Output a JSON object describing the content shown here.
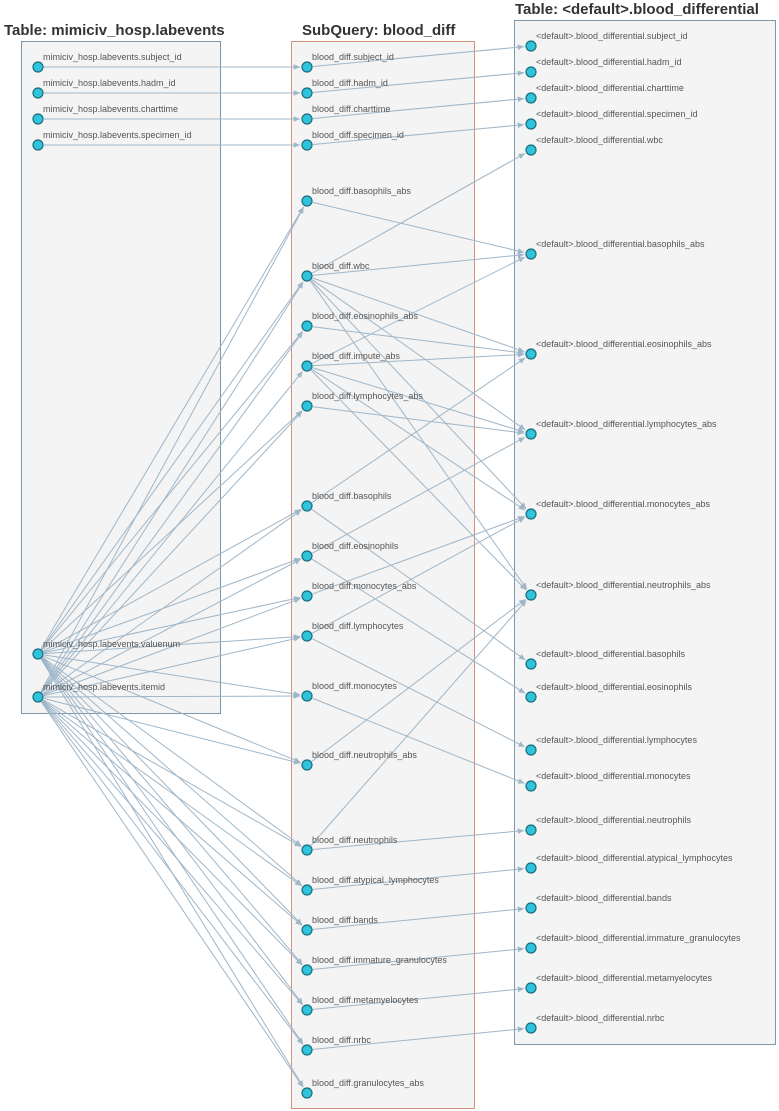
{
  "tables": {
    "source": {
      "title": "Table: mimiciv_hosp.labevents",
      "columns": [
        "mimiciv_hosp.labevents.subject_id",
        "mimiciv_hosp.labevents.hadm_id",
        "mimiciv_hosp.labevents.charttime",
        "mimiciv_hosp.labevents.specimen_id",
        "mimiciv_hosp.labevents.valuenum",
        "mimiciv_hosp.labevents.itemid"
      ]
    },
    "subquery": {
      "title": "SubQuery: blood_diff",
      "columns": [
        "blood_diff.subject_id",
        "blood_diff.hadm_id",
        "blood_diff.charttime",
        "blood_diff.specimen_id",
        "blood_diff.basophils_abs",
        "blood_diff.wbc",
        "blood_diff.eosinophils_abs",
        "blood_diff.impute_abs",
        "blood_diff.lymphocytes_abs",
        "blood_diff.basophils",
        "blood_diff.eosinophils",
        "blood_diff.monocytes_abs",
        "blood_diff.lymphocytes",
        "blood_diff.monocytes",
        "blood_diff.neutrophils_abs",
        "blood_diff.neutrophils",
        "blood_diff.atypical_lymphocytes",
        "blood_diff.bands",
        "blood_diff.immature_granulocytes",
        "blood_diff.metamyelocytes",
        "blood_diff.nrbc",
        "blood_diff.granulocytes_abs"
      ]
    },
    "target": {
      "title": "Table: <default>.blood_differential",
      "columns": [
        "<default>.blood_differential.subject_id",
        "<default>.blood_differential.hadm_id",
        "<default>.blood_differential.charttime",
        "<default>.blood_differential.specimen_id",
        "<default>.blood_differential.wbc",
        "<default>.blood_differential.basophils_abs",
        "<default>.blood_differential.eosinophils_abs",
        "<default>.blood_differential.lymphocytes_abs",
        "<default>.blood_differential.monocytes_abs",
        "<default>.blood_differential.neutrophils_abs",
        "<default>.blood_differential.basophils",
        "<default>.blood_differential.eosinophils",
        "<default>.blood_differential.lymphocytes",
        "<default>.blood_differential.monocytes",
        "<default>.blood_differential.neutrophils",
        "<default>.blood_differential.atypical_lymphocytes",
        "<default>.blood_differential.bands",
        "<default>.blood_differential.immature_granulocytes",
        "<default>.blood_differential.metamyelocytes",
        "<default>.blood_differential.nrbc"
      ]
    }
  },
  "edges": {
    "source_to_subquery": [
      [
        "mimiciv_hosp.labevents.subject_id",
        "blood_diff.subject_id"
      ],
      [
        "mimiciv_hosp.labevents.hadm_id",
        "blood_diff.hadm_id"
      ],
      [
        "mimiciv_hosp.labevents.charttime",
        "blood_diff.charttime"
      ],
      [
        "mimiciv_hosp.labevents.specimen_id",
        "blood_diff.specimen_id"
      ],
      [
        "mimiciv_hosp.labevents.valuenum",
        "blood_diff.basophils_abs"
      ],
      [
        "mimiciv_hosp.labevents.valuenum",
        "blood_diff.wbc"
      ],
      [
        "mimiciv_hosp.labevents.valuenum",
        "blood_diff.eosinophils_abs"
      ],
      [
        "mimiciv_hosp.labevents.valuenum",
        "blood_diff.lymphocytes_abs"
      ],
      [
        "mimiciv_hosp.labevents.valuenum",
        "blood_diff.basophils"
      ],
      [
        "mimiciv_hosp.labevents.valuenum",
        "blood_diff.eosinophils"
      ],
      [
        "mimiciv_hosp.labevents.valuenum",
        "blood_diff.monocytes_abs"
      ],
      [
        "mimiciv_hosp.labevents.valuenum",
        "blood_diff.lymphocytes"
      ],
      [
        "mimiciv_hosp.labevents.valuenum",
        "blood_diff.monocytes"
      ],
      [
        "mimiciv_hosp.labevents.valuenum",
        "blood_diff.neutrophils_abs"
      ],
      [
        "mimiciv_hosp.labevents.valuenum",
        "blood_diff.neutrophils"
      ],
      [
        "mimiciv_hosp.labevents.valuenum",
        "blood_diff.atypical_lymphocytes"
      ],
      [
        "mimiciv_hosp.labevents.valuenum",
        "blood_diff.bands"
      ],
      [
        "mimiciv_hosp.labevents.valuenum",
        "blood_diff.immature_granulocytes"
      ],
      [
        "mimiciv_hosp.labevents.valuenum",
        "blood_diff.metamyelocytes"
      ],
      [
        "mimiciv_hosp.labevents.valuenum",
        "blood_diff.nrbc"
      ],
      [
        "mimiciv_hosp.labevents.valuenum",
        "blood_diff.granulocytes_abs"
      ],
      [
        "mimiciv_hosp.labevents.itemid",
        "blood_diff.basophils_abs"
      ],
      [
        "mimiciv_hosp.labevents.itemid",
        "blood_diff.wbc"
      ],
      [
        "mimiciv_hosp.labevents.itemid",
        "blood_diff.eosinophils_abs"
      ],
      [
        "mimiciv_hosp.labevents.itemid",
        "blood_diff.impute_abs"
      ],
      [
        "mimiciv_hosp.labevents.itemid",
        "blood_diff.lymphocytes_abs"
      ],
      [
        "mimiciv_hosp.labevents.itemid",
        "blood_diff.basophils"
      ],
      [
        "mimiciv_hosp.labevents.itemid",
        "blood_diff.eosinophils"
      ],
      [
        "mimiciv_hosp.labevents.itemid",
        "blood_diff.monocytes_abs"
      ],
      [
        "mimiciv_hosp.labevents.itemid",
        "blood_diff.lymphocytes"
      ],
      [
        "mimiciv_hosp.labevents.itemid",
        "blood_diff.monocytes"
      ],
      [
        "mimiciv_hosp.labevents.itemid",
        "blood_diff.neutrophils_abs"
      ],
      [
        "mimiciv_hosp.labevents.itemid",
        "blood_diff.neutrophils"
      ],
      [
        "mimiciv_hosp.labevents.itemid",
        "blood_diff.atypical_lymphocytes"
      ],
      [
        "mimiciv_hosp.labevents.itemid",
        "blood_diff.bands"
      ],
      [
        "mimiciv_hosp.labevents.itemid",
        "blood_diff.immature_granulocytes"
      ],
      [
        "mimiciv_hosp.labevents.itemid",
        "blood_diff.metamyelocytes"
      ],
      [
        "mimiciv_hosp.labevents.itemid",
        "blood_diff.nrbc"
      ],
      [
        "mimiciv_hosp.labevents.itemid",
        "blood_diff.granulocytes_abs"
      ]
    ],
    "subquery_to_target": [
      [
        "blood_diff.subject_id",
        "<default>.blood_differential.subject_id"
      ],
      [
        "blood_diff.hadm_id",
        "<default>.blood_differential.hadm_id"
      ],
      [
        "blood_diff.charttime",
        "<default>.blood_differential.charttime"
      ],
      [
        "blood_diff.specimen_id",
        "<default>.blood_differential.specimen_id"
      ],
      [
        "blood_diff.wbc",
        "<default>.blood_differential.wbc"
      ],
      [
        "blood_diff.basophils_abs",
        "<default>.blood_differential.basophils_abs"
      ],
      [
        "blood_diff.wbc",
        "<default>.blood_differential.basophils_abs"
      ],
      [
        "blood_diff.impute_abs",
        "<default>.blood_differential.basophils_abs"
      ],
      [
        "blood_diff.eosinophils_abs",
        "<default>.blood_differential.eosinophils_abs"
      ],
      [
        "blood_diff.wbc",
        "<default>.blood_differential.eosinophils_abs"
      ],
      [
        "blood_diff.impute_abs",
        "<default>.blood_differential.eosinophils_abs"
      ],
      [
        "blood_diff.basophils",
        "<default>.blood_differential.eosinophils_abs"
      ],
      [
        "blood_diff.lymphocytes_abs",
        "<default>.blood_differential.lymphocytes_abs"
      ],
      [
        "blood_diff.wbc",
        "<default>.blood_differential.lymphocytes_abs"
      ],
      [
        "blood_diff.impute_abs",
        "<default>.blood_differential.lymphocytes_abs"
      ],
      [
        "blood_diff.eosinophils",
        "<default>.blood_differential.lymphocytes_abs"
      ],
      [
        "blood_diff.monocytes_abs",
        "<default>.blood_differential.monocytes_abs"
      ],
      [
        "blood_diff.wbc",
        "<default>.blood_differential.monocytes_abs"
      ],
      [
        "blood_diff.impute_abs",
        "<default>.blood_differential.monocytes_abs"
      ],
      [
        "blood_diff.lymphocytes",
        "<default>.blood_differential.monocytes_abs"
      ],
      [
        "blood_diff.neutrophils_abs",
        "<default>.blood_differential.neutrophils_abs"
      ],
      [
        "blood_diff.wbc",
        "<default>.blood_differential.neutrophils_abs"
      ],
      [
        "blood_diff.impute_abs",
        "<default>.blood_differential.neutrophils_abs"
      ],
      [
        "blood_diff.neutrophils",
        "<default>.blood_differential.neutrophils_abs"
      ],
      [
        "blood_diff.basophils",
        "<default>.blood_differential.basophils"
      ],
      [
        "blood_diff.eosinophils",
        "<default>.blood_differential.eosinophils"
      ],
      [
        "blood_diff.lymphocytes",
        "<default>.blood_differential.lymphocytes"
      ],
      [
        "blood_diff.monocytes",
        "<default>.blood_differential.monocytes"
      ],
      [
        "blood_diff.neutrophils",
        "<default>.blood_differential.neutrophils"
      ],
      [
        "blood_diff.atypical_lymphocytes",
        "<default>.blood_differential.atypical_lymphocytes"
      ],
      [
        "blood_diff.bands",
        "<default>.blood_differential.bands"
      ],
      [
        "blood_diff.immature_granulocytes",
        "<default>.blood_differential.immature_granulocytes"
      ],
      [
        "blood_diff.metamyelocytes",
        "<default>.blood_differential.metamyelocytes"
      ],
      [
        "blood_diff.nrbc",
        "<default>.blood_differential.nrbc"
      ]
    ]
  },
  "colors": {
    "edge": "#9fb6c8",
    "port_fill": "#2ec4db",
    "port_stroke": "#1d6c7c",
    "table_border": "#7d98ac",
    "subquery_border": "#d2917b",
    "box_fill": "#f4f4f4"
  }
}
